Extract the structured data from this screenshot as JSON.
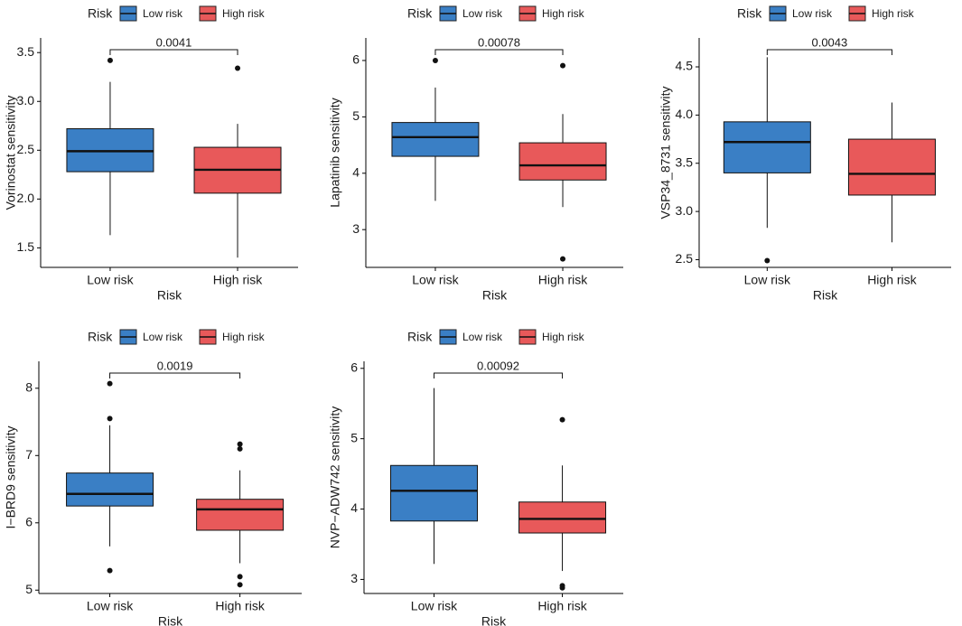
{
  "colors": {
    "low_risk": "#3a7fc5",
    "high_risk": "#e8595a",
    "axis": "#000000"
  },
  "chart_data": [
    {
      "type": "box",
      "legend": {
        "title": "Risk",
        "entries": [
          "Low risk",
          "High risk"
        ],
        "position": "top"
      },
      "xlabel": "Risk",
      "ylabel": "Vorinostat sensitivity",
      "categories": [
        "Low risk",
        "High risk"
      ],
      "ylim": [
        1.3,
        3.65
      ],
      "yticks": [
        1.5,
        2.0,
        2.5,
        3.0,
        3.5
      ],
      "ytick_labels": [
        "1.5",
        "2.0",
        "2.5",
        "3.0",
        "3.5"
      ],
      "boxes": [
        {
          "name": "Low risk",
          "whisker_low": 1.63,
          "q1": 2.28,
          "median": 2.49,
          "q3": 2.72,
          "whisker_high": 3.2,
          "outliers": [
            3.42
          ]
        },
        {
          "name": "High risk",
          "whisker_low": 1.4,
          "q1": 2.06,
          "median": 2.3,
          "q3": 2.53,
          "whisker_high": 2.77,
          "outliers": [
            3.34
          ]
        }
      ],
      "p_value": "0.0041"
    },
    {
      "type": "box",
      "legend": {
        "title": "Risk",
        "entries": [
          "Low risk",
          "High risk"
        ],
        "position": "top"
      },
      "xlabel": "Risk",
      "ylabel": "Lapatinib sensitivity",
      "categories": [
        "Low risk",
        "High risk"
      ],
      "ylim": [
        2.33,
        6.4
      ],
      "yticks": [
        3,
        4,
        5,
        6
      ],
      "ytick_labels": [
        "3",
        "4",
        "5",
        "6"
      ],
      "boxes": [
        {
          "name": "Low risk",
          "whisker_low": 3.51,
          "q1": 4.3,
          "median": 4.64,
          "q3": 4.9,
          "whisker_high": 5.52,
          "outliers": [
            6.0
          ]
        },
        {
          "name": "High risk",
          "whisker_low": 3.4,
          "q1": 3.88,
          "median": 4.14,
          "q3": 4.54,
          "whisker_high": 5.05,
          "outliers": [
            5.91,
            2.48
          ]
        }
      ],
      "p_value": "0.00078"
    },
    {
      "type": "box",
      "legend": {
        "title": "Risk",
        "entries": [
          "Low risk",
          "High risk"
        ],
        "position": "top"
      },
      "xlabel": "Risk",
      "ylabel": "VSP34_8731 sensitivity",
      "categories": [
        "Low risk",
        "High risk"
      ],
      "ylim": [
        2.42,
        4.8
      ],
      "yticks": [
        2.5,
        3.0,
        3.5,
        4.0,
        4.5
      ],
      "ytick_labels": [
        "2.5",
        "3.0",
        "3.5",
        "4.0",
        "4.5"
      ],
      "boxes": [
        {
          "name": "Low risk",
          "whisker_low": 2.83,
          "q1": 3.4,
          "median": 3.72,
          "q3": 3.93,
          "whisker_high": 4.6,
          "outliers": [
            2.49
          ]
        },
        {
          "name": "High risk",
          "whisker_low": 2.68,
          "q1": 3.17,
          "median": 3.39,
          "q3": 3.75,
          "whisker_high": 4.13,
          "outliers": []
        }
      ],
      "p_value": "0.0043"
    },
    {
      "type": "box",
      "legend": {
        "title": "Risk",
        "entries": [
          "Low risk",
          "High risk"
        ],
        "position": "top"
      },
      "xlabel": "Risk",
      "ylabel": "I−BRD9 sensitivity",
      "categories": [
        "Low risk",
        "High risk"
      ],
      "ylim": [
        4.95,
        8.4
      ],
      "yticks": [
        5,
        6,
        7,
        8
      ],
      "ytick_labels": [
        "5",
        "6",
        "7",
        "8"
      ],
      "boxes": [
        {
          "name": "Low risk",
          "whisker_low": 5.65,
          "q1": 6.25,
          "median": 6.43,
          "q3": 6.74,
          "whisker_high": 7.45,
          "outliers": [
            8.07,
            7.55,
            5.29
          ]
        },
        {
          "name": "High risk",
          "whisker_low": 5.4,
          "q1": 5.89,
          "median": 6.2,
          "q3": 6.35,
          "whisker_high": 6.78,
          "outliers": [
            7.17,
            7.1,
            5.2,
            5.08
          ]
        }
      ],
      "p_value": "0.0019"
    },
    {
      "type": "box",
      "legend": {
        "title": "Risk",
        "entries": [
          "Low risk",
          "High risk"
        ],
        "position": "top"
      },
      "xlabel": "Risk",
      "ylabel": "NVP−ADW742 sensitivity",
      "categories": [
        "Low risk",
        "High risk"
      ],
      "ylim": [
        2.8,
        6.1
      ],
      "yticks": [
        3,
        4,
        5,
        6
      ],
      "ytick_labels": [
        "3",
        "4",
        "5",
        "6"
      ],
      "boxes": [
        {
          "name": "Low risk",
          "whisker_low": 3.22,
          "q1": 3.83,
          "median": 4.26,
          "q3": 4.62,
          "whisker_high": 5.72,
          "outliers": []
        },
        {
          "name": "High risk",
          "whisker_low": 3.12,
          "q1": 3.66,
          "median": 3.86,
          "q3": 4.1,
          "whisker_high": 4.62,
          "outliers": [
            5.27,
            2.91,
            2.88
          ]
        }
      ],
      "p_value": "0.00092"
    }
  ]
}
